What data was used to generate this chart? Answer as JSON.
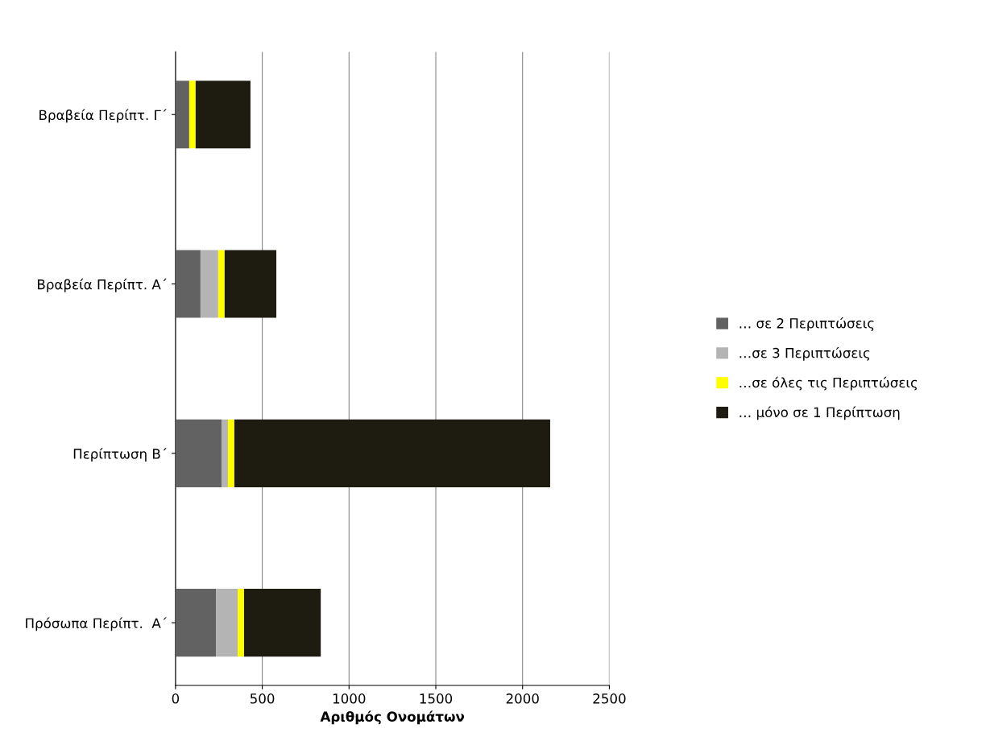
{
  "chart_data": {
    "type": "bar",
    "orientation": "horizontal",
    "stacked": true,
    "categories": [
      "Βραβεία Περίπτ. Γ΄",
      "Βραβεία Περίπτ. Α΄",
      "Περίπτωση Β΄",
      "Πρόσωπα Περίπτ.  Α΄"
    ],
    "series": [
      {
        "name": "… σε 2 Περιπτώσεις",
        "color": "#626262",
        "values": [
          79,
          144,
          265,
          233
        ]
      },
      {
        "name": "…σε 3 Περιπτώσεις",
        "color": "#b4b4b4",
        "values": [
          0,
          102,
          37,
          125
        ]
      },
      {
        "name": "…σε όλες τις Περιπτώσεις",
        "color": "#ffff00",
        "values": [
          37,
          37,
          37,
          37
        ]
      },
      {
        "name": "… μόνο σε 1 Περίπτωση",
        "color": "#1e1b10",
        "values": [
          316,
          298,
          1820,
          442
        ]
      }
    ],
    "xlabel": "Αριθμός Ονομάτων",
    "xlim": [
      0,
      2500
    ],
    "xticks": [
      0,
      500,
      1000,
      1500,
      2000,
      2500
    ],
    "grid": "x",
    "legend": "right"
  }
}
